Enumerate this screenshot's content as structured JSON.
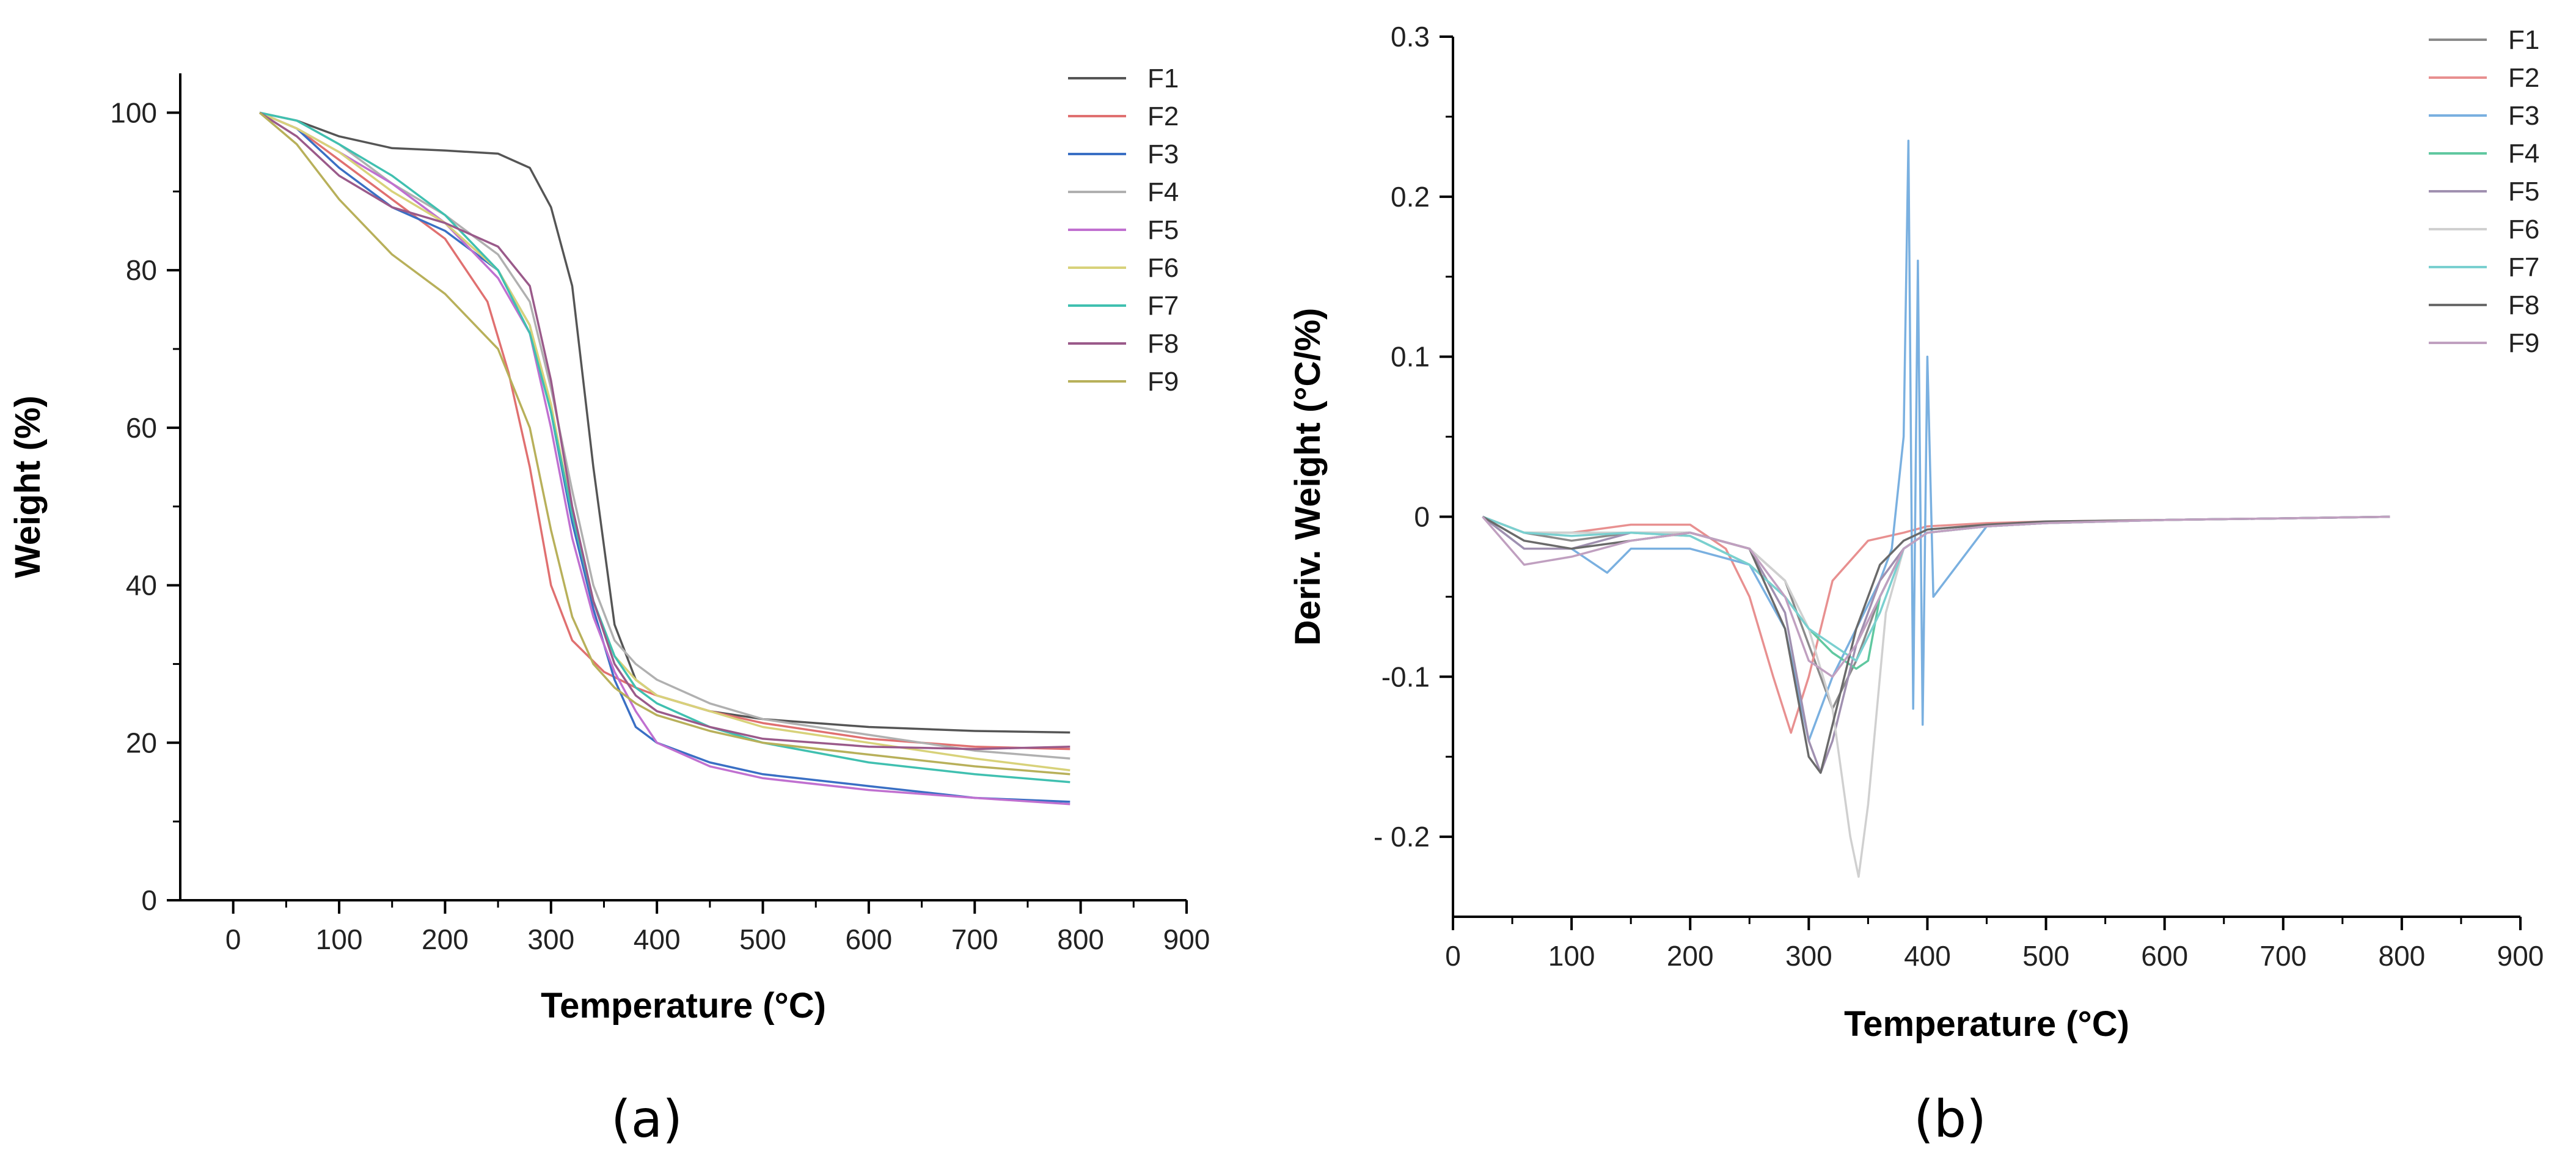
{
  "figure": {
    "panels": [
      "(a)",
      "(b)"
    ]
  },
  "chart_data": [
    {
      "id": "a",
      "type": "line",
      "panel_label": "(a)",
      "xlabel": "Temperature (°C)",
      "ylabel": "Weight (%)",
      "xlim": [
        -50,
        900
      ],
      "ylim": [
        0,
        105
      ],
      "xticks": [
        0,
        100,
        200,
        300,
        400,
        500,
        600,
        700,
        800,
        900
      ],
      "yticks": [
        0,
        20,
        40,
        60,
        80,
        100
      ],
      "legend_position": "top-right",
      "series": [
        {
          "name": "F1",
          "color": "#555555",
          "x": [
            25,
            60,
            100,
            150,
            200,
            250,
            280,
            300,
            320,
            340,
            360,
            380,
            400,
            450,
            500,
            600,
            700,
            790
          ],
          "y": [
            100,
            99,
            97,
            95.5,
            95.2,
            94.8,
            93,
            88,
            78,
            55,
            35,
            28,
            26,
            24,
            23,
            22,
            21.5,
            21.3
          ]
        },
        {
          "name": "F2",
          "color": "#e07070",
          "x": [
            25,
            60,
            100,
            150,
            200,
            240,
            260,
            280,
            300,
            320,
            350,
            380,
            400,
            450,
            500,
            600,
            700,
            790
          ],
          "y": [
            100,
            98,
            94,
            89,
            84,
            76,
            67,
            55,
            40,
            33,
            29,
            27,
            26,
            24,
            22.5,
            20.5,
            19.5,
            19.2
          ]
        },
        {
          "name": "F3",
          "color": "#3a6fc4",
          "x": [
            25,
            60,
            100,
            150,
            200,
            250,
            280,
            300,
            320,
            340,
            360,
            380,
            400,
            450,
            500,
            600,
            700,
            790
          ],
          "y": [
            100,
            98,
            93,
            88,
            85,
            80,
            73,
            62,
            48,
            37,
            28,
            22,
            20,
            17.5,
            16,
            14.5,
            13,
            12.5
          ]
        },
        {
          "name": "F4",
          "color": "#b0b0b0",
          "x": [
            25,
            60,
            100,
            150,
            200,
            250,
            280,
            300,
            320,
            340,
            360,
            380,
            400,
            450,
            500,
            600,
            700,
            790
          ],
          "y": [
            100,
            99,
            96,
            91,
            87,
            82,
            76,
            65,
            52,
            40,
            33,
            30,
            28,
            25,
            23,
            21,
            19,
            18
          ]
        },
        {
          "name": "F5",
          "color": "#c070d0",
          "x": [
            25,
            60,
            100,
            150,
            200,
            250,
            280,
            300,
            320,
            340,
            360,
            380,
            400,
            450,
            500,
            600,
            700,
            790
          ],
          "y": [
            100,
            98,
            95,
            91,
            86,
            79,
            72,
            60,
            46,
            36,
            29,
            24,
            20,
            17,
            15.5,
            14,
            13,
            12.2
          ]
        },
        {
          "name": "F6",
          "color": "#d8d27a",
          "x": [
            25,
            60,
            100,
            150,
            200,
            250,
            280,
            300,
            320,
            340,
            360,
            380,
            400,
            450,
            500,
            600,
            700,
            790
          ],
          "y": [
            100,
            98,
            95,
            90,
            86,
            80,
            73,
            63,
            49,
            38,
            31,
            28,
            26,
            24,
            22,
            20,
            18,
            16.5
          ]
        },
        {
          "name": "F7",
          "color": "#40c0b0",
          "x": [
            25,
            60,
            100,
            150,
            200,
            250,
            280,
            300,
            320,
            340,
            360,
            380,
            400,
            450,
            500,
            600,
            700,
            790
          ],
          "y": [
            100,
            99,
            96,
            92,
            87,
            80,
            72,
            62,
            49,
            38,
            31,
            27,
            25,
            22,
            20,
            17.5,
            16,
            15
          ]
        },
        {
          "name": "F8",
          "color": "#9a5a8a",
          "x": [
            25,
            60,
            100,
            150,
            200,
            250,
            280,
            300,
            320,
            340,
            360,
            380,
            400,
            450,
            500,
            600,
            700,
            790
          ],
          "y": [
            100,
            97,
            92,
            88,
            86,
            83,
            78,
            66,
            50,
            38,
            30,
            26,
            24,
            22,
            20.5,
            19.5,
            19.2,
            19.5
          ]
        },
        {
          "name": "F9",
          "color": "#b8b05a",
          "x": [
            25,
            60,
            100,
            150,
            200,
            250,
            280,
            300,
            320,
            340,
            360,
            380,
            400,
            450,
            500,
            600,
            700,
            790
          ],
          "y": [
            100,
            96,
            89,
            82,
            77,
            70,
            60,
            47,
            36,
            30,
            27,
            25,
            23.5,
            21.5,
            20,
            18.5,
            17,
            16
          ]
        }
      ]
    },
    {
      "id": "b",
      "type": "line",
      "panel_label": "(b)",
      "xlabel": "Temperature (°C)",
      "ylabel": "Deriv. Weight (°C/%)",
      "xlim": [
        0,
        900
      ],
      "ylim": [
        -0.25,
        0.3
      ],
      "xticks": [
        0,
        100,
        200,
        300,
        400,
        500,
        600,
        700,
        800,
        900
      ],
      "yticks": [
        -0.2,
        -0.1,
        0,
        0.1,
        0.2,
        0.3
      ],
      "ytick_labels": [
        "- 0.2",
        "-0.1",
        "0",
        "0.1",
        "0.2",
        "0.3"
      ],
      "legend_position": "top-right",
      "series": [
        {
          "name": "F1",
          "color": "#8a8a8a",
          "x": [
            25,
            60,
            100,
            150,
            200,
            250,
            280,
            300,
            320,
            340,
            360,
            380,
            400,
            450,
            500,
            600,
            700,
            790
          ],
          "y": [
            0,
            -0.01,
            -0.015,
            -0.01,
            -0.01,
            -0.02,
            -0.04,
            -0.08,
            -0.12,
            -0.09,
            -0.05,
            -0.02,
            -0.01,
            -0.006,
            -0.004,
            -0.002,
            -0.001,
            0
          ]
        },
        {
          "name": "F2",
          "color": "#e89090",
          "x": [
            25,
            60,
            100,
            150,
            200,
            230,
            250,
            270,
            285,
            300,
            320,
            350,
            380,
            400,
            450,
            500,
            600,
            700,
            790
          ],
          "y": [
            0,
            -0.01,
            -0.01,
            -0.005,
            -0.005,
            -0.02,
            -0.05,
            -0.1,
            -0.135,
            -0.1,
            -0.04,
            -0.015,
            -0.01,
            -0.006,
            -0.004,
            -0.003,
            -0.002,
            -0.001,
            0
          ]
        },
        {
          "name": "F3",
          "color": "#7ab0e0",
          "x": [
            25,
            60,
            100,
            130,
            150,
            200,
            250,
            280,
            300,
            320,
            340,
            360,
            370,
            380,
            384,
            388,
            392,
            396,
            400,
            405,
            450,
            500,
            600,
            700,
            790
          ],
          "y": [
            0,
            -0.02,
            -0.02,
            -0.035,
            -0.02,
            -0.02,
            -0.03,
            -0.07,
            -0.14,
            -0.1,
            -0.07,
            -0.04,
            -0.02,
            0.05,
            0.235,
            -0.12,
            0.16,
            -0.13,
            0.1,
            -0.05,
            -0.006,
            -0.004,
            -0.002,
            -0.001,
            0
          ]
        },
        {
          "name": "F4",
          "color": "#60c8a0",
          "x": [
            25,
            60,
            100,
            150,
            200,
            250,
            280,
            300,
            320,
            340,
            350,
            360,
            380,
            400,
            450,
            500,
            600,
            700,
            790
          ],
          "y": [
            0,
            -0.01,
            -0.01,
            -0.01,
            -0.012,
            -0.03,
            -0.05,
            -0.07,
            -0.085,
            -0.095,
            -0.09,
            -0.05,
            -0.02,
            -0.01,
            -0.006,
            -0.004,
            -0.002,
            -0.001,
            0
          ]
        },
        {
          "name": "F5",
          "color": "#a090b0",
          "x": [
            25,
            60,
            100,
            150,
            200,
            250,
            280,
            300,
            310,
            320,
            340,
            360,
            380,
            400,
            450,
            500,
            600,
            700,
            790
          ],
          "y": [
            0,
            -0.02,
            -0.02,
            -0.01,
            -0.01,
            -0.02,
            -0.06,
            -0.14,
            -0.16,
            -0.14,
            -0.08,
            -0.04,
            -0.02,
            -0.01,
            -0.006,
            -0.004,
            -0.002,
            -0.001,
            0
          ]
        },
        {
          "name": "F6",
          "color": "#d0d0d0",
          "x": [
            25,
            60,
            100,
            150,
            200,
            250,
            280,
            300,
            320,
            335,
            342,
            350,
            365,
            380,
            400,
            450,
            500,
            600,
            700,
            790
          ],
          "y": [
            0,
            -0.01,
            -0.01,
            -0.01,
            -0.01,
            -0.02,
            -0.04,
            -0.07,
            -0.12,
            -0.2,
            -0.225,
            -0.18,
            -0.06,
            -0.02,
            -0.01,
            -0.006,
            -0.004,
            -0.002,
            -0.001,
            0
          ]
        },
        {
          "name": "F7",
          "color": "#7ad0d0",
          "x": [
            25,
            60,
            100,
            150,
            200,
            250,
            280,
            300,
            320,
            340,
            360,
            380,
            400,
            450,
            500,
            600,
            700,
            790
          ],
          "y": [
            0,
            -0.01,
            -0.012,
            -0.01,
            -0.012,
            -0.03,
            -0.05,
            -0.07,
            -0.08,
            -0.09,
            -0.06,
            -0.02,
            -0.01,
            -0.006,
            -0.004,
            -0.002,
            -0.001,
            0
          ]
        },
        {
          "name": "F8",
          "color": "#6a6a6a",
          "x": [
            25,
            60,
            100,
            150,
            200,
            250,
            280,
            300,
            310,
            320,
            340,
            360,
            380,
            400,
            450,
            500,
            600,
            700,
            790
          ],
          "y": [
            0,
            -0.015,
            -0.02,
            -0.015,
            -0.01,
            -0.02,
            -0.07,
            -0.15,
            -0.16,
            -0.13,
            -0.07,
            -0.03,
            -0.015,
            -0.008,
            -0.005,
            -0.003,
            -0.002,
            -0.001,
            0
          ]
        },
        {
          "name": "F9",
          "color": "#c0a0c0",
          "x": [
            25,
            60,
            100,
            150,
            200,
            250,
            280,
            300,
            320,
            340,
            360,
            380,
            400,
            450,
            500,
            600,
            700,
            790
          ],
          "y": [
            0,
            -0.03,
            -0.025,
            -0.015,
            -0.01,
            -0.02,
            -0.05,
            -0.09,
            -0.1,
            -0.08,
            -0.05,
            -0.02,
            -0.01,
            -0.006,
            -0.004,
            -0.002,
            -0.001,
            0
          ]
        }
      ]
    }
  ]
}
